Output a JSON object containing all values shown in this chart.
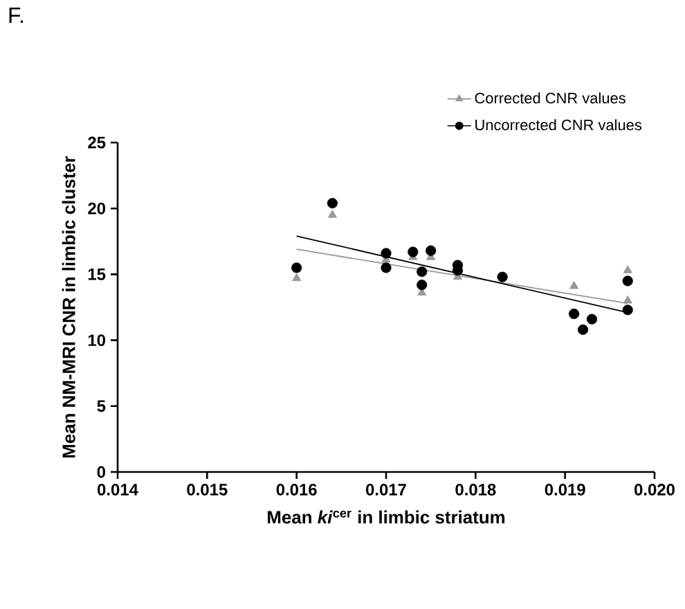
{
  "chart_data": {
    "type": "scatter",
    "xlabel": "Mean *ki*$^{cer}$ in limbic striatum",
    "ylabel": "Mean NM-MRI CNR in limbic cluster",
    "annotations": [
      "F."
    ],
    "xlim": [
      0.014,
      0.02
    ],
    "xticks": [
      0.014,
      0.015,
      0.016,
      0.017,
      0.018,
      0.019,
      {
        "value": 0.02,
        "label": "0.020"
      }
    ],
    "ylim": [
      0,
      25
    ],
    "yticks": [
      0,
      5,
      10,
      15,
      20,
      25
    ],
    "grid": false,
    "legend": "top right",
    "series": [
      {
        "name": "Corrected CNR values",
        "color": "#999999",
        "marker": "triangle",
        "x": [
          0.016,
          0.0164,
          0.017,
          0.0173,
          0.0174,
          0.0175,
          0.0178,
          0.0191,
          0.0197,
          0.0197
        ],
        "values": [
          14.7,
          19.5,
          16.1,
          16.3,
          13.6,
          16.3,
          14.8,
          14.1,
          15.3,
          13.0
        ]
      },
      {
        "name": "Uncorrected CNR values",
        "color": "#000000",
        "marker": "circle",
        "x": [
          0.016,
          0.0164,
          0.017,
          0.017,
          0.0173,
          0.0174,
          0.0174,
          0.0175,
          0.0178,
          0.0178,
          0.0183,
          0.0191,
          0.0192,
          0.0193,
          0.0197,
          0.0197
        ],
        "values": [
          15.5,
          20.4,
          16.6,
          15.5,
          16.7,
          15.2,
          14.2,
          16.8,
          15.7,
          15.3,
          14.8,
          12.0,
          10.8,
          11.6,
          14.5,
          12.3
        ]
      },
      {
        "type": "line",
        "color": "#999999",
        "x": [
          0.016,
          0.0197
        ],
        "values": [
          16.9,
          12.8
        ]
      },
      {
        "type": "line",
        "color": "#000000",
        "x": [
          0.016,
          0.0197
        ],
        "values": [
          17.9,
          12.1
        ]
      }
    ]
  }
}
